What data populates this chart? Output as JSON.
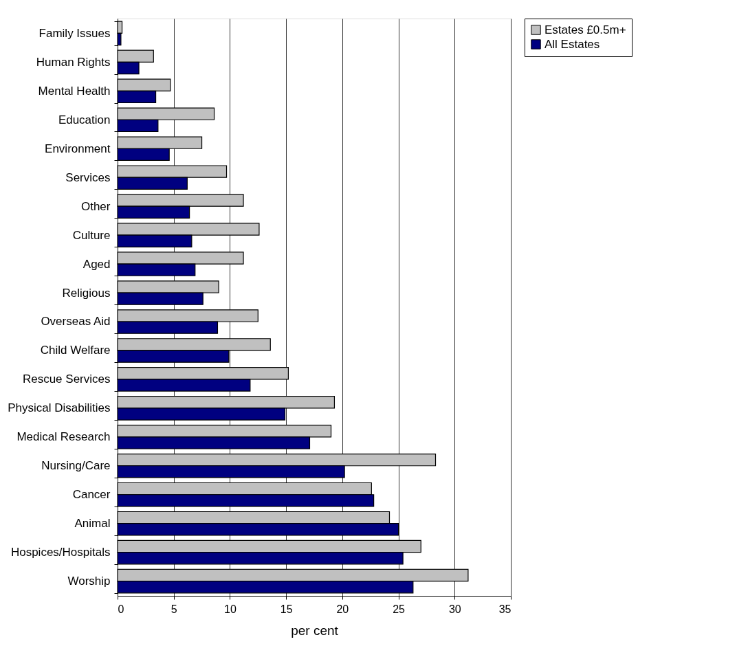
{
  "chart_data": {
    "type": "bar",
    "orientation": "horizontal",
    "xlabel": "per cent",
    "categories": [
      "Family Issues",
      "Human Rights",
      "Mental Health",
      "Education",
      "Environment",
      "Services",
      "Other",
      "Culture",
      "Aged",
      "Religious",
      "Overseas Aid",
      "Child Welfare",
      "Rescue Services",
      "Physical Disabilities",
      "Medical Research",
      "Nursing/Care",
      "Cancer",
      "Animal",
      "Hospices/Hospitals",
      "Worship"
    ],
    "series": [
      {
        "name": "Estates £0.5m+",
        "color": "#c0c0c0",
        "values": [
          0.4,
          3.2,
          4.7,
          8.6,
          7.5,
          9.7,
          11.2,
          12.6,
          11.2,
          9.0,
          12.5,
          13.6,
          15.2,
          19.3,
          19.0,
          28.3,
          22.6,
          24.2,
          27.0,
          31.2
        ]
      },
      {
        "name": "All Estates",
        "color": "#000080",
        "values": [
          0.3,
          1.9,
          3.4,
          3.6,
          4.6,
          6.2,
          6.4,
          6.6,
          6.9,
          7.6,
          8.9,
          9.9,
          11.8,
          14.9,
          17.1,
          20.2,
          22.8,
          25.0,
          25.4,
          26.3
        ]
      }
    ],
    "xlim": [
      0,
      35
    ],
    "xticks": [
      0,
      5,
      10,
      15,
      20,
      25,
      30,
      35
    ],
    "grid": "x",
    "legend": "right"
  }
}
